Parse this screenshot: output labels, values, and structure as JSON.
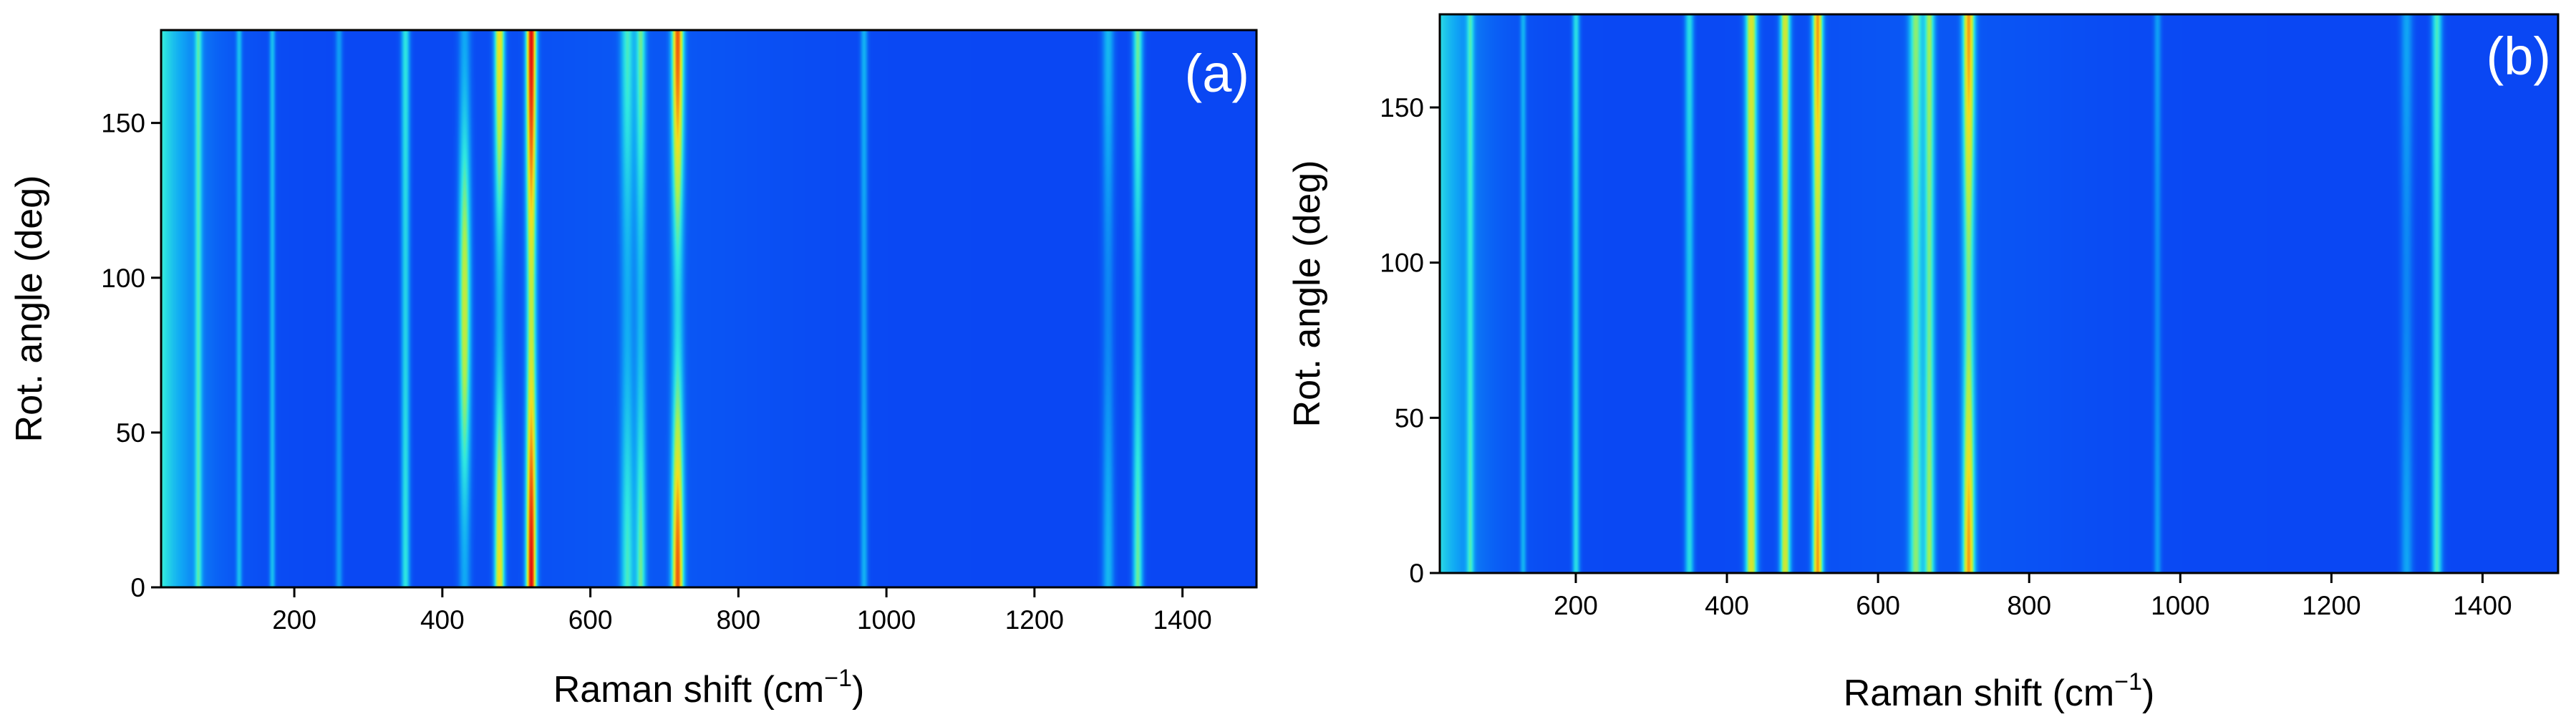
{
  "chart_data": [
    {
      "type": "heatmap",
      "panel_label": "(a)",
      "xlabel": "Raman shift (cm",
      "xlabel_sup": "−1",
      "xlabel_end": ")",
      "ylabel": "Rot. angle (deg)",
      "xlim": [
        20,
        1500
      ],
      "ylim": [
        0,
        180
      ],
      "xticks": [
        200,
        400,
        600,
        800,
        1000,
        1200,
        1400
      ],
      "yticks": [
        0,
        50,
        100,
        150
      ],
      "colormap": [
        "#0a28f0",
        "#0a60f5",
        "#10a8f5",
        "#30e8e0",
        "#a8f050",
        "#f0e020",
        "#f07010",
        "#e01010"
      ],
      "background_level": 0.08,
      "edge_level": 0.45,
      "bands": [
        {
          "x": 70,
          "width": 5,
          "max": 0.36,
          "min": 0.34,
          "phase": 0
        },
        {
          "x": 125,
          "width": 4,
          "max": 0.3,
          "min": 0.28,
          "phase": 0
        },
        {
          "x": 170,
          "width": 4,
          "max": 0.32,
          "min": 0.3,
          "phase": 0
        },
        {
          "x": 260,
          "width": 5,
          "max": 0.26,
          "min": 0.24,
          "phase": 0
        },
        {
          "x": 350,
          "width": 6,
          "max": 0.42,
          "min": 0.38,
          "phase": 0
        },
        {
          "x": 430,
          "width": 8,
          "max": 0.62,
          "min": 0.28,
          "phase": 90
        },
        {
          "x": 477,
          "width": 7,
          "max": 0.7,
          "min": 0.3,
          "phase": 0
        },
        {
          "x": 520,
          "width": 7,
          "max": 0.98,
          "min": 0.6,
          "phase": 0
        },
        {
          "x": 650,
          "width": 9,
          "max": 0.42,
          "min": 0.26,
          "phase": 0
        },
        {
          "x": 668,
          "width": 7,
          "max": 0.46,
          "min": 0.28,
          "phase": 0
        },
        {
          "x": 718,
          "width": 8,
          "max": 0.85,
          "min": 0.36,
          "phase": 0
        },
        {
          "x": 970,
          "width": 5,
          "max": 0.3,
          "min": 0.26,
          "phase": 0
        },
        {
          "x": 1300,
          "width": 8,
          "max": 0.32,
          "min": 0.22,
          "phase": 0
        },
        {
          "x": 1340,
          "width": 7,
          "max": 0.5,
          "min": 0.34,
          "phase": 0
        }
      ]
    },
    {
      "type": "heatmap",
      "panel_label": "(b)",
      "xlabel": "Raman shift (cm",
      "xlabel_sup": "−1",
      "xlabel_end": ")",
      "ylabel": "Rot. angle (deg)",
      "xlim": [
        20,
        1500
      ],
      "ylim": [
        0,
        180
      ],
      "xticks": [
        200,
        400,
        600,
        800,
        1000,
        1200,
        1400
      ],
      "yticks": [
        0,
        50,
        100,
        150
      ],
      "colormap": [
        "#0a28f0",
        "#0a60f5",
        "#10a8f5",
        "#30e8e0",
        "#a8f050",
        "#f0e020",
        "#f07010",
        "#e01010"
      ],
      "background_level": 0.08,
      "edge_level": 0.4,
      "bands": [
        {
          "x": 60,
          "width": 5,
          "max": 0.34,
          "min": 0.3,
          "phase": 0
        },
        {
          "x": 130,
          "width": 4,
          "max": 0.28,
          "min": 0.26,
          "phase": 0
        },
        {
          "x": 200,
          "width": 5,
          "max": 0.4,
          "min": 0.36,
          "phase": 0
        },
        {
          "x": 350,
          "width": 6,
          "max": 0.4,
          "min": 0.34,
          "phase": 0
        },
        {
          "x": 432,
          "width": 8,
          "max": 0.66,
          "min": 0.6,
          "phase": 0
        },
        {
          "x": 477,
          "width": 7,
          "max": 0.64,
          "min": 0.56,
          "phase": 0
        },
        {
          "x": 520,
          "width": 7,
          "max": 0.78,
          "min": 0.56,
          "phase": 0
        },
        {
          "x": 650,
          "width": 9,
          "max": 0.5,
          "min": 0.44,
          "phase": 0
        },
        {
          "x": 668,
          "width": 7,
          "max": 0.52,
          "min": 0.46,
          "phase": 0
        },
        {
          "x": 720,
          "width": 8,
          "max": 0.76,
          "min": 0.48,
          "phase": 0
        },
        {
          "x": 970,
          "width": 5,
          "max": 0.26,
          "min": 0.22,
          "phase": 0
        },
        {
          "x": 1300,
          "width": 8,
          "max": 0.28,
          "min": 0.22,
          "phase": 0
        },
        {
          "x": 1340,
          "width": 7,
          "max": 0.46,
          "min": 0.4,
          "phase": 0
        }
      ]
    }
  ]
}
